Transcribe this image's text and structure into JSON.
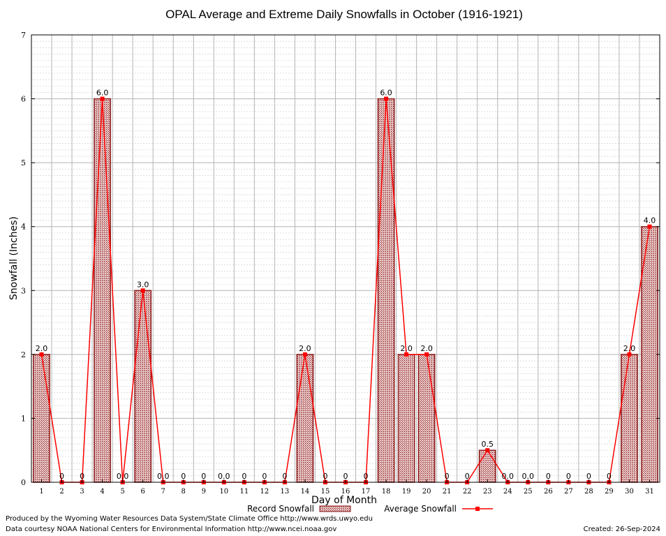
{
  "chart_data": {
    "type": "bar",
    "title": "OPAL Average and Extreme Daily Snowfalls in October (1916-1921)",
    "xlabel": "Day of Month",
    "ylabel": "Snowfall (Inches)",
    "ylim": [
      0,
      7
    ],
    "yticks": [
      "0",
      "1",
      "2",
      "3",
      "4",
      "5",
      "6",
      "7"
    ],
    "categories": [
      "1",
      "2",
      "3",
      "4",
      "5",
      "6",
      "7",
      "8",
      "9",
      "10",
      "11",
      "12",
      "13",
      "14",
      "15",
      "16",
      "17",
      "18",
      "19",
      "20",
      "21",
      "22",
      "23",
      "24",
      "25",
      "26",
      "27",
      "28",
      "29",
      "30",
      "31"
    ],
    "grid": true,
    "legend_position": "bottom",
    "series": [
      {
        "name": "Record Snowfall",
        "type": "bar",
        "color": "#8b1a1a",
        "values": [
          2.0,
          0,
          0,
          6.0,
          0.0,
          3.0,
          0.0,
          0,
          0,
          0.0,
          0,
          0,
          0,
          2.0,
          0,
          0,
          0,
          6.0,
          2.0,
          2.0,
          0,
          0,
          0.5,
          0.0,
          0.0,
          0,
          0,
          0,
          0,
          2.0,
          4.0
        ],
        "labels": [
          "2.0",
          "0",
          "0",
          "6.0",
          "0.0",
          "3.0",
          "0.0",
          "0",
          "0",
          "0.0",
          "0",
          "0",
          "0",
          "2.0",
          "0",
          "0",
          "0",
          "6.0",
          "2.0",
          "2.0",
          "0",
          "0",
          "0.5",
          "0.0",
          "0.0",
          "0",
          "0",
          "0",
          "0",
          "2.0",
          "4.0"
        ]
      },
      {
        "name": "Average Snowfall",
        "type": "line",
        "color": "#ff0000",
        "values": [
          2.0,
          0,
          0,
          6.0,
          0,
          3.0,
          0,
          0,
          0,
          0,
          0,
          0,
          0,
          2.0,
          0,
          0,
          0,
          6.0,
          2.0,
          2.0,
          0,
          0,
          0.5,
          0,
          0,
          0,
          0,
          0,
          0,
          2.0,
          4.0
        ]
      }
    ]
  },
  "footer": {
    "produced_by": "Produced by the Wyoming Water Resources Data System/State Climate Office http://www.wrds.uwyo.edu",
    "data_courtesy": "Data courtesy NOAA National Centers for Environmental Information http://www.ncei.noaa.gov",
    "created": "Created:  26-Sep-2024"
  }
}
